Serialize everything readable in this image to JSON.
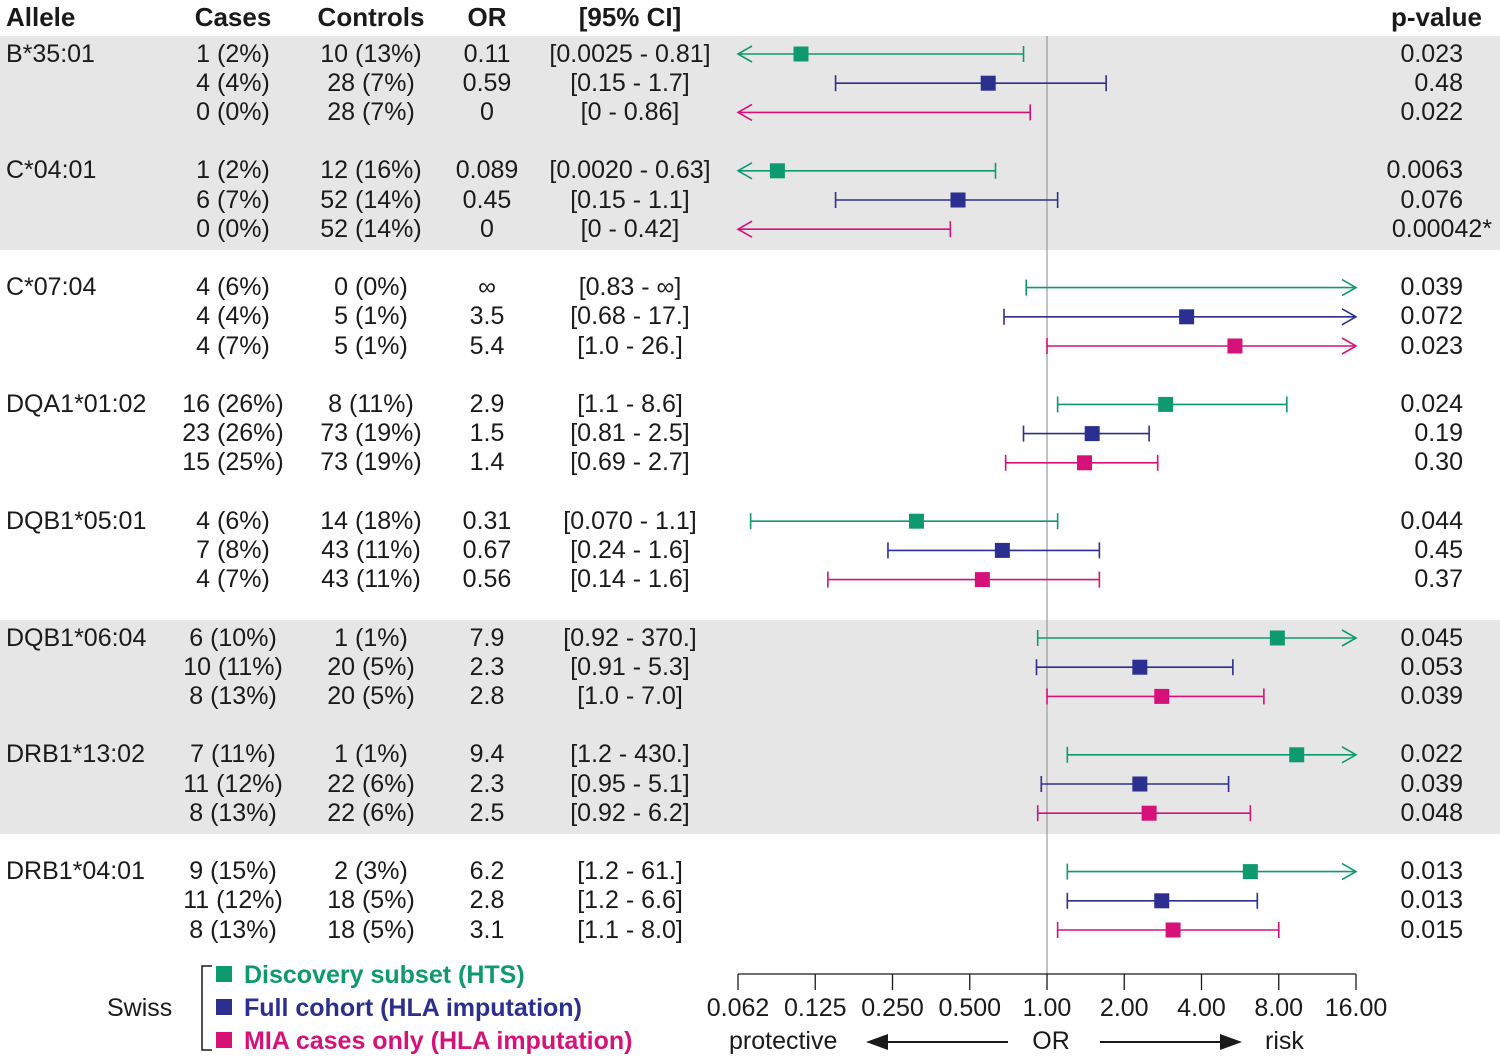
{
  "chart_data": {
    "type": "forest",
    "x_scale": "log2",
    "xlim": [
      0.062,
      16.0
    ],
    "reference_line": 1.0,
    "headers": {
      "allele": "Allele",
      "cases": "Cases",
      "controls": "Controls",
      "or": "OR",
      "ci": "[95% CI]",
      "pvalue": "p-value"
    },
    "series": [
      {
        "name": "Discovery subset (HTS)",
        "color": "#0e9a6e"
      },
      {
        "name": "Full cohort (HLA imputation)",
        "color": "#2b2f8f"
      },
      {
        "name": "MIA cases only (HLA imputation)",
        "color": "#d6127a"
      }
    ],
    "legend_group_label": "Swiss",
    "groups": [
      {
        "allele": "B*35:01",
        "shaded": true,
        "rows": [
          {
            "cases": "1 (2%)",
            "controls": "10 (13%)",
            "or_text": "0.11",
            "ci_text": "[0.0025 - 0.81]",
            "p": "0.023",
            "or": 0.11,
            "lo": 0.0025,
            "hi": 0.81
          },
          {
            "cases": "4 (4%)",
            "controls": "28 (7%)",
            "or_text": "0.59",
            "ci_text": "[0.15 - 1.7]",
            "p": "0.48",
            "or": 0.59,
            "lo": 0.15,
            "hi": 1.7
          },
          {
            "cases": "0 (0%)",
            "controls": "28 (7%)",
            "or_text": "0",
            "ci_text": "[0 - 0.86]",
            "p": "0.022",
            "or": 0,
            "lo": 0,
            "hi": 0.86
          }
        ]
      },
      {
        "allele": "C*04:01",
        "shaded": true,
        "rows": [
          {
            "cases": "1 (2%)",
            "controls": "12 (16%)",
            "or_text": "0.089",
            "ci_text": "[0.0020 - 0.63]",
            "p": "0.0063",
            "or": 0.089,
            "lo": 0.002,
            "hi": 0.63
          },
          {
            "cases": "6 (7%)",
            "controls": "52 (14%)",
            "or_text": "0.45",
            "ci_text": "[0.15 - 1.1]",
            "p": "0.076",
            "or": 0.45,
            "lo": 0.15,
            "hi": 1.1
          },
          {
            "cases": "0 (0%)",
            "controls": "52 (14%)",
            "or_text": "0",
            "ci_text": "[0 - 0.42]",
            "p": "0.00042*",
            "or": 0,
            "lo": 0,
            "hi": 0.42
          }
        ]
      },
      {
        "allele": "C*07:04",
        "shaded": false,
        "rows": [
          {
            "cases": "4 (6%)",
            "controls": "0 (0%)",
            "or_text": "∞",
            "ci_text": "[0.83 - ∞]",
            "p": "0.039",
            "or": null,
            "lo": 0.83,
            "hi": null
          },
          {
            "cases": "4 (4%)",
            "controls": "5 (1%)",
            "or_text": "3.5",
            "ci_text": "[0.68 - 17.]",
            "p": "0.072",
            "or": 3.5,
            "lo": 0.68,
            "hi": 17
          },
          {
            "cases": "4 (7%)",
            "controls": "5 (1%)",
            "or_text": "5.4",
            "ci_text": "[1.0 - 26.]",
            "p": "0.023",
            "or": 5.4,
            "lo": 1.0,
            "hi": 26
          }
        ]
      },
      {
        "allele": "DQA1*01:02",
        "shaded": false,
        "rows": [
          {
            "cases": "16 (26%)",
            "controls": "8 (11%)",
            "or_text": "2.9",
            "ci_text": "[1.1 - 8.6]",
            "p": "0.024",
            "or": 2.9,
            "lo": 1.1,
            "hi": 8.6
          },
          {
            "cases": "23 (26%)",
            "controls": "73 (19%)",
            "or_text": "1.5",
            "ci_text": "[0.81 - 2.5]",
            "p": "0.19",
            "or": 1.5,
            "lo": 0.81,
            "hi": 2.5
          },
          {
            "cases": "15 (25%)",
            "controls": "73 (19%)",
            "or_text": "1.4",
            "ci_text": "[0.69 - 2.7]",
            "p": "0.30",
            "or": 1.4,
            "lo": 0.69,
            "hi": 2.7
          }
        ]
      },
      {
        "allele": "DQB1*05:01",
        "shaded": false,
        "rows": [
          {
            "cases": "4 (6%)",
            "controls": "14 (18%)",
            "or_text": "0.31",
            "ci_text": "[0.070 - 1.1]",
            "p": "0.044",
            "or": 0.31,
            "lo": 0.07,
            "hi": 1.1
          },
          {
            "cases": "7 (8%)",
            "controls": "43 (11%)",
            "or_text": "0.67",
            "ci_text": "[0.24 - 1.6]",
            "p": "0.45",
            "or": 0.67,
            "lo": 0.24,
            "hi": 1.6
          },
          {
            "cases": "4 (7%)",
            "controls": "43 (11%)",
            "or_text": "0.56",
            "ci_text": "[0.14 - 1.6]",
            "p": "0.37",
            "or": 0.56,
            "lo": 0.14,
            "hi": 1.6
          }
        ]
      },
      {
        "allele": "DQB1*06:04",
        "shaded": true,
        "rows": [
          {
            "cases": "6 (10%)",
            "controls": "1 (1%)",
            "or_text": "7.9",
            "ci_text": "[0.92 - 370.]",
            "p": "0.045",
            "or": 7.9,
            "lo": 0.92,
            "hi": 370
          },
          {
            "cases": "10 (11%)",
            "controls": "20 (5%)",
            "or_text": "2.3",
            "ci_text": "[0.91 - 5.3]",
            "p": "0.053",
            "or": 2.3,
            "lo": 0.91,
            "hi": 5.3
          },
          {
            "cases": "8 (13%)",
            "controls": "20 (5%)",
            "or_text": "2.8",
            "ci_text": "[1.0 - 7.0]",
            "p": "0.039",
            "or": 2.8,
            "lo": 1.0,
            "hi": 7.0
          }
        ]
      },
      {
        "allele": "DRB1*13:02",
        "shaded": true,
        "rows": [
          {
            "cases": "7 (11%)",
            "controls": "1 (1%)",
            "or_text": "9.4",
            "ci_text": "[1.2 - 430.]",
            "p": "0.022",
            "or": 9.4,
            "lo": 1.2,
            "hi": 430
          },
          {
            "cases": "11 (12%)",
            "controls": "22 (6%)",
            "or_text": "2.3",
            "ci_text": "[0.95 - 5.1]",
            "p": "0.039",
            "or": 2.3,
            "lo": 0.95,
            "hi": 5.1
          },
          {
            "cases": "8 (13%)",
            "controls": "22 (6%)",
            "or_text": "2.5",
            "ci_text": "[0.92 - 6.2]",
            "p": "0.048",
            "or": 2.5,
            "lo": 0.92,
            "hi": 6.2
          }
        ]
      },
      {
        "allele": "DRB1*04:01",
        "shaded": false,
        "rows": [
          {
            "cases": "9 (15%)",
            "controls": "2 (3%)",
            "or_text": "6.2",
            "ci_text": "[1.2 - 61.]",
            "p": "0.013",
            "or": 6.2,
            "lo": 1.2,
            "hi": 61
          },
          {
            "cases": "11 (12%)",
            "controls": "18 (5%)",
            "or_text": "2.8",
            "ci_text": "[1.2 - 6.6]",
            "p": "0.013",
            "or": 2.8,
            "lo": 1.2,
            "hi": 6.6
          },
          {
            "cases": "8 (13%)",
            "controls": "18 (5%)",
            "or_text": "3.1",
            "ci_text": "[1.1 - 8.0]",
            "p": "0.015",
            "or": 3.1,
            "lo": 1.1,
            "hi": 8.0
          }
        ]
      }
    ],
    "x_ticks": [
      {
        "value": 0.0625,
        "label": "0.062"
      },
      {
        "value": 0.125,
        "label": "0.125"
      },
      {
        "value": 0.25,
        "label": "0.250"
      },
      {
        "value": 0.5,
        "label": "0.500"
      },
      {
        "value": 1.0,
        "label": "1.00"
      },
      {
        "value": 2.0,
        "label": "2.00"
      },
      {
        "value": 4.0,
        "label": "4.00"
      },
      {
        "value": 8.0,
        "label": "8.00"
      },
      {
        "value": 16.0,
        "label": "16.00"
      }
    ],
    "x_axis_words": {
      "left": "protective",
      "center": "OR",
      "right": "risk"
    }
  }
}
